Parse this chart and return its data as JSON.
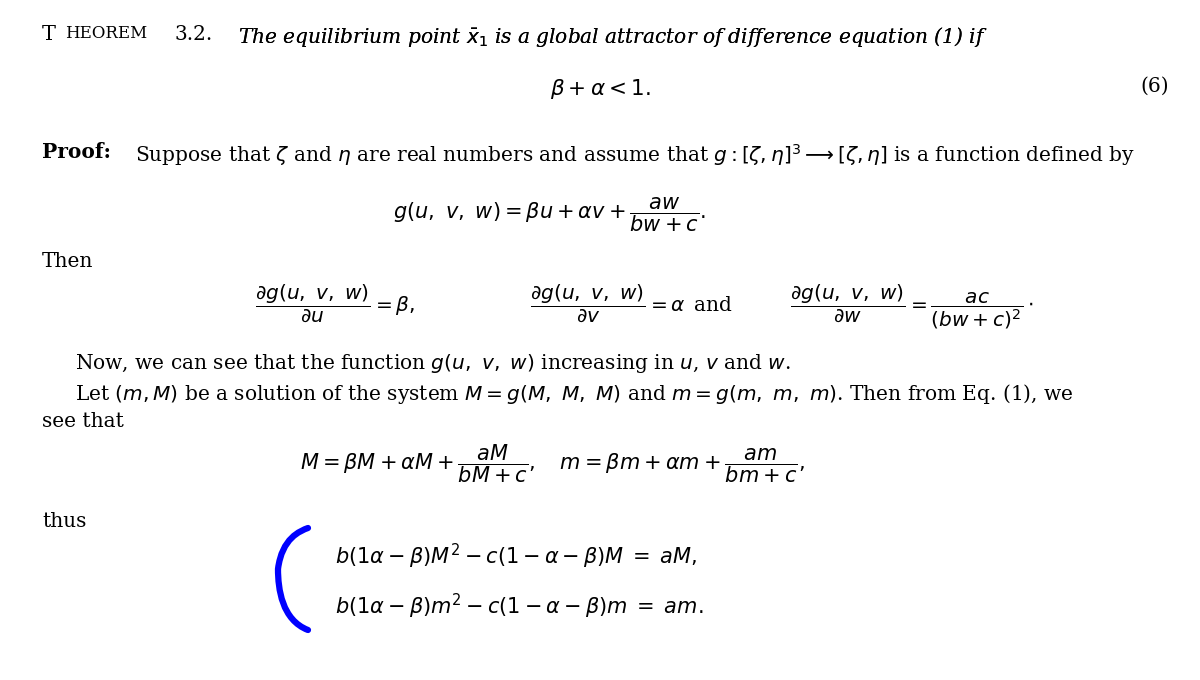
{
  "background_color": "#ffffff",
  "fontsize": 14.5,
  "lines": {
    "theorem_small": "HEOREM",
    "theorem_T": "T",
    "theorem_num": "3.2.",
    "theorem_italic": "The equilibrium point $\\bar{x}_1$ is a global attractor of difference equation (1) if",
    "condition": "$\\beta + \\alpha < 1.$",
    "condition_label": "(6)",
    "proof_bold": "Proof:",
    "proof_rest": "Suppose that $\\zeta$ and $\\eta$ are real numbers and assume that $g : [\\zeta, \\eta]^3 \\longrightarrow [\\zeta, \\eta]$ is a function defined by",
    "g_def": "$g(u,\\ v,\\ w) = \\beta u + \\alpha v + \\dfrac{aw}{bw+c}.$",
    "then": "Then",
    "partial_u": "$\\dfrac{\\partial g(u,\\ v,\\ w)}{\\partial u} = \\beta,$",
    "partial_v": "$\\dfrac{\\partial g(u,\\ v,\\ w)}{\\partial v} = \\alpha\\,$ and",
    "partial_w": "$\\dfrac{\\partial g(u,\\ v,\\ w)}{\\partial w} = \\dfrac{ac}{(bw+c)^2}\\cdot$",
    "now_line": "Now, we can see that the function $g(u,\\ v,\\ w)$ increasing in $u$, $v$ and $w$.",
    "let_line": "Let $(m, M)$ be a solution of the system $M = g(M,\\ M,\\ M)$ and $m = g(m,\\ m,\\ m)$. Then from Eq. (1), we",
    "see_that": "see that",
    "eq_line": "$M = \\beta M + \\alpha M + \\dfrac{aM}{bM+c},\\quad m = \\beta m + \\alpha m + \\dfrac{am}{bm+c},$",
    "thus": "thus",
    "sys1": "$b(1\\alpha - \\beta)M^2 - c(1 - \\alpha - \\beta)M \\;=\\; aM,$",
    "sys2": "$b(1\\alpha - \\beta)m^2 - c(1 - \\alpha - \\beta)m \\;=\\; am.$"
  },
  "brace_color": "#0000ff",
  "brace_linewidth": 4.5
}
